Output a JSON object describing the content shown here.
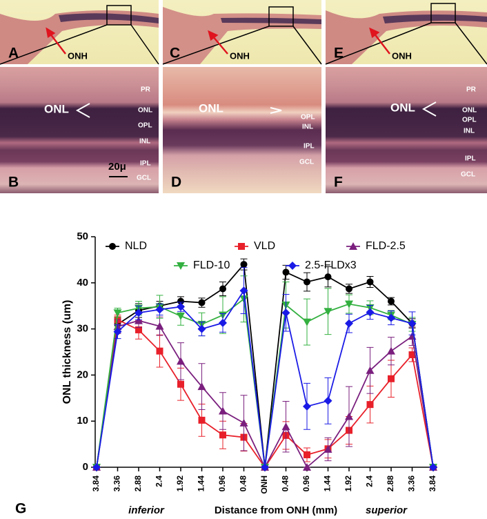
{
  "panels": {
    "letters": [
      "A",
      "B",
      "C",
      "D",
      "E",
      "F"
    ],
    "onh": "ONH",
    "onl": "ONL",
    "scale": "20μ",
    "layers_b": [
      "PR",
      "ONL",
      "OPL",
      "INL",
      "IPL",
      "GCL"
    ],
    "layers_d": [
      "OPL",
      "INL",
      "IPL",
      "GCL"
    ],
    "layers_f": [
      "PR",
      "ONL",
      "OPL",
      "INL",
      "IPL",
      "GCL"
    ]
  },
  "chart_data": {
    "type": "line",
    "panel": "G",
    "ylabel": "ONL thickness (um)",
    "xlabel": "Distance from ONH (mm)",
    "left_note": "inferior",
    "right_note": "superior",
    "categories": [
      "3.84",
      "3.36",
      "2.88",
      "2.4",
      "1.92",
      "1.44",
      "0.96",
      "0.48",
      "ONH",
      "0.48",
      "0.96",
      "1.44",
      "1.92",
      "2.4",
      "2.88",
      "3.36",
      "3.84"
    ],
    "ylim": [
      0,
      50
    ],
    "yticks": [
      0,
      10,
      20,
      30,
      40,
      50
    ],
    "series": [
      {
        "name": "NLD",
        "color": "#000000",
        "marker": "circle",
        "values": [
          0,
          31,
          34,
          35,
          36,
          35.7,
          38.7,
          44,
          0,
          42.3,
          40.2,
          41.3,
          38.7,
          40.2,
          36,
          31.2,
          0
        ],
        "errors": [
          0,
          1,
          1.5,
          1,
          1,
          1,
          1.5,
          1.2,
          0,
          1.5,
          2,
          2.2,
          1,
          1.2,
          0.8,
          1,
          0
        ]
      },
      {
        "name": "VLD",
        "color": "#e8202a",
        "marker": "square",
        "values": [
          0,
          32,
          29.8,
          25.2,
          18,
          10.2,
          7,
          6.5,
          0,
          6.9,
          2.7,
          4,
          8,
          13.6,
          19.2,
          24.4,
          0
        ],
        "errors": [
          0,
          1,
          2,
          3.5,
          3.5,
          3.5,
          3,
          3,
          0,
          3,
          1.5,
          2,
          3,
          4,
          4,
          1.5,
          0
        ]
      },
      {
        "name": "FLD-2.5",
        "color": "#7a1f7e",
        "marker": "triangle-up",
        "values": [
          0,
          30.5,
          31.8,
          30.6,
          23,
          17.5,
          12.2,
          9.6,
          0,
          8.8,
          0,
          3.9,
          11,
          21,
          25.2,
          28.4,
          0
        ],
        "errors": [
          0,
          1.5,
          1.5,
          2,
          4,
          5,
          4,
          6,
          0,
          5.5,
          0,
          2.5,
          6.5,
          5,
          3,
          2,
          0
        ]
      },
      {
        "name": "FLD-10",
        "color": "#33b040",
        "marker": "triangle-down",
        "values": [
          0,
          33.5,
          34.5,
          34.8,
          32.8,
          31,
          33,
          36.5,
          0,
          35.2,
          31.5,
          33.8,
          35.4,
          34.6,
          33,
          31,
          0
        ],
        "errors": [
          0,
          1,
          1.5,
          2.5,
          2,
          2.5,
          4,
          5,
          0,
          5,
          5,
          5,
          2,
          1.5,
          1,
          1.5,
          0
        ]
      },
      {
        "name": "2.5-FLDx3",
        "color": "#1a1ae6",
        "marker": "diamond",
        "values": [
          0,
          29.4,
          33.5,
          34.2,
          34.8,
          30,
          31.3,
          38.3,
          0,
          33.5,
          13.2,
          14.4,
          31.2,
          33.6,
          32.4,
          31.2,
          0
        ],
        "errors": [
          0,
          1.5,
          1.5,
          1.2,
          1,
          1.5,
          2,
          5,
          0,
          4,
          5,
          5,
          2,
          1.5,
          1.5,
          2.5,
          0
        ]
      }
    ]
  }
}
